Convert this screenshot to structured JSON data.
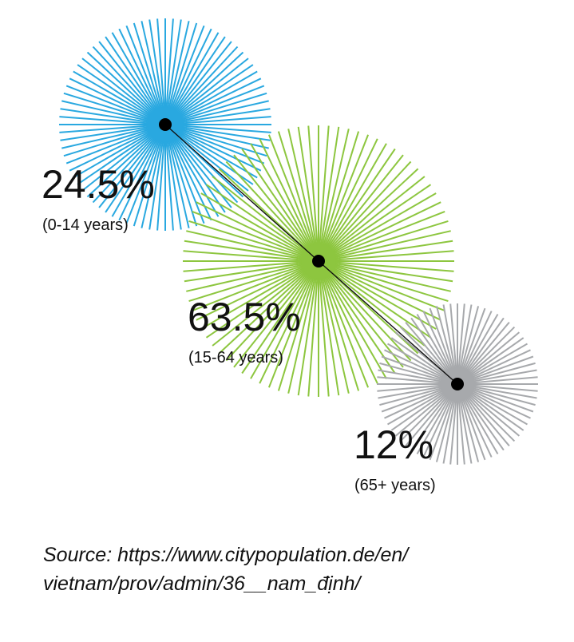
{
  "chart_data": {
    "type": "other",
    "title": "",
    "series": [
      {
        "value": 24.5,
        "value_label": "24.5%",
        "category": "(0-14 years)",
        "color": "#29a8e0"
      },
      {
        "value": 63.5,
        "value_label": "63.5%",
        "category": "(15-64 years)",
        "color": "#8dc63f"
      },
      {
        "value": 12,
        "value_label": "12%",
        "category": "(65+ years)",
        "color": "#a7a9ac"
      }
    ]
  },
  "source": {
    "line1": "Source: https://www.citypopulation.de/en/",
    "line2": "vietnam/prov/admin/36__nam_định/"
  }
}
